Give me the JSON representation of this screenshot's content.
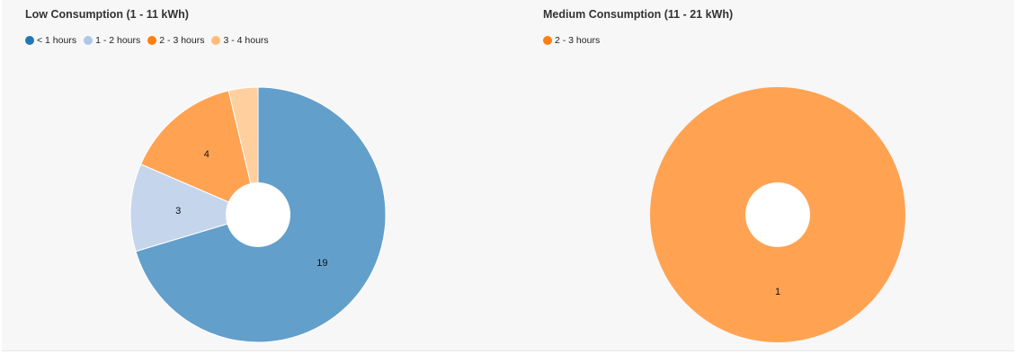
{
  "chart_data": [
    {
      "type": "pie",
      "title": "Low Consumption (1 - 11 kWh)",
      "legend_position": "top-left",
      "donut": true,
      "categories": [
        "< 1 hours",
        "1 - 2 hours",
        "2 - 3 hours",
        "3 - 4 hours"
      ],
      "values": [
        19,
        3,
        4,
        1
      ],
      "labels": [
        "19",
        "3",
        "4",
        ""
      ],
      "colors": [
        "#639fcb",
        "#c5d5ec",
        "#ffa353",
        "#ffcf9e"
      ],
      "legend_colors": [
        "#1f77b4",
        "#aec7e8",
        "#ff7f0e",
        "#ffbb78"
      ]
    },
    {
      "type": "pie",
      "title": "Medium Consumption (11 - 21 kWh)",
      "legend_position": "top-left",
      "donut": true,
      "categories": [
        "2 - 3 hours"
      ],
      "values": [
        1
      ],
      "labels": [
        "1"
      ],
      "colors": [
        "#ffa353"
      ],
      "legend_colors": [
        "#ff7f0e"
      ]
    }
  ]
}
